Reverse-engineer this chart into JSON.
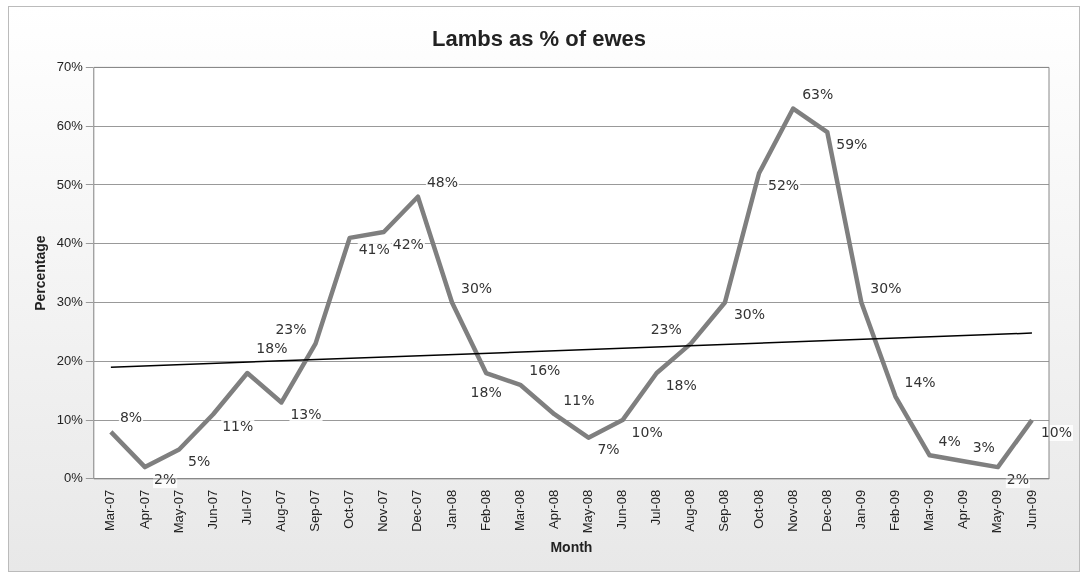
{
  "chart_data": {
    "type": "line",
    "title": "Lambs as % of ewes",
    "xlabel": "Month",
    "ylabel": "Percentage",
    "categories": [
      "Mar-07",
      "Apr-07",
      "May-07",
      "Jun-07",
      "Jul-07",
      "Aug-07",
      "Sep-07",
      "Oct-07",
      "Nov-07",
      "Dec-07",
      "Jan-08",
      "Feb-08",
      "Mar-08",
      "Apr-08",
      "May-08",
      "Jun-08",
      "Jul-08",
      "Aug-08",
      "Sep-08",
      "Oct-08",
      "Nov-08",
      "Dec-08",
      "Jan-09",
      "Feb-09",
      "Mar-09",
      "Apr-09",
      "May-09",
      "Jun-09"
    ],
    "series": [
      {
        "color": "#7f7f7f",
        "values": [
          8,
          2,
          5,
          11,
          18,
          13,
          23,
          41,
          42,
          48,
          30,
          18,
          16,
          11,
          7,
          10,
          18,
          23,
          30,
          52,
          63,
          59,
          30,
          14,
          4,
          3,
          2,
          10
        ],
        "value_labels": [
          "8%",
          "2%",
          "5%",
          "11%",
          "18%",
          "13%",
          "23%",
          "41%",
          "42%",
          "48%",
          "30%",
          "18%",
          "16%",
          "11%",
          "7%",
          "10%",
          "18%",
          "23%",
          "30%",
          "52%",
          "63%",
          "59%",
          "30%",
          "14%",
          "4%",
          "3%",
          "2%",
          "10%"
        ]
      },
      {
        "type": "line",
        "color": "#000000",
        "x": [
          "Mar-07",
          "Jun-09"
        ],
        "values": [
          19,
          24.8
        ]
      }
    ],
    "ylim": [
      0,
      70
    ],
    "yticks": [
      {
        "value": 0,
        "label": "0%"
      },
      {
        "value": 10,
        "label": "10%"
      },
      {
        "value": 20,
        "label": "20%"
      },
      {
        "value": 30,
        "label": "30%"
      },
      {
        "value": 40,
        "label": "40%"
      },
      {
        "value": 50,
        "label": "50%"
      },
      {
        "value": 60,
        "label": "60%"
      },
      {
        "value": 70,
        "label": "70%"
      }
    ],
    "grid": "y",
    "legend": false,
    "marker": "none",
    "line_style": "solid"
  }
}
